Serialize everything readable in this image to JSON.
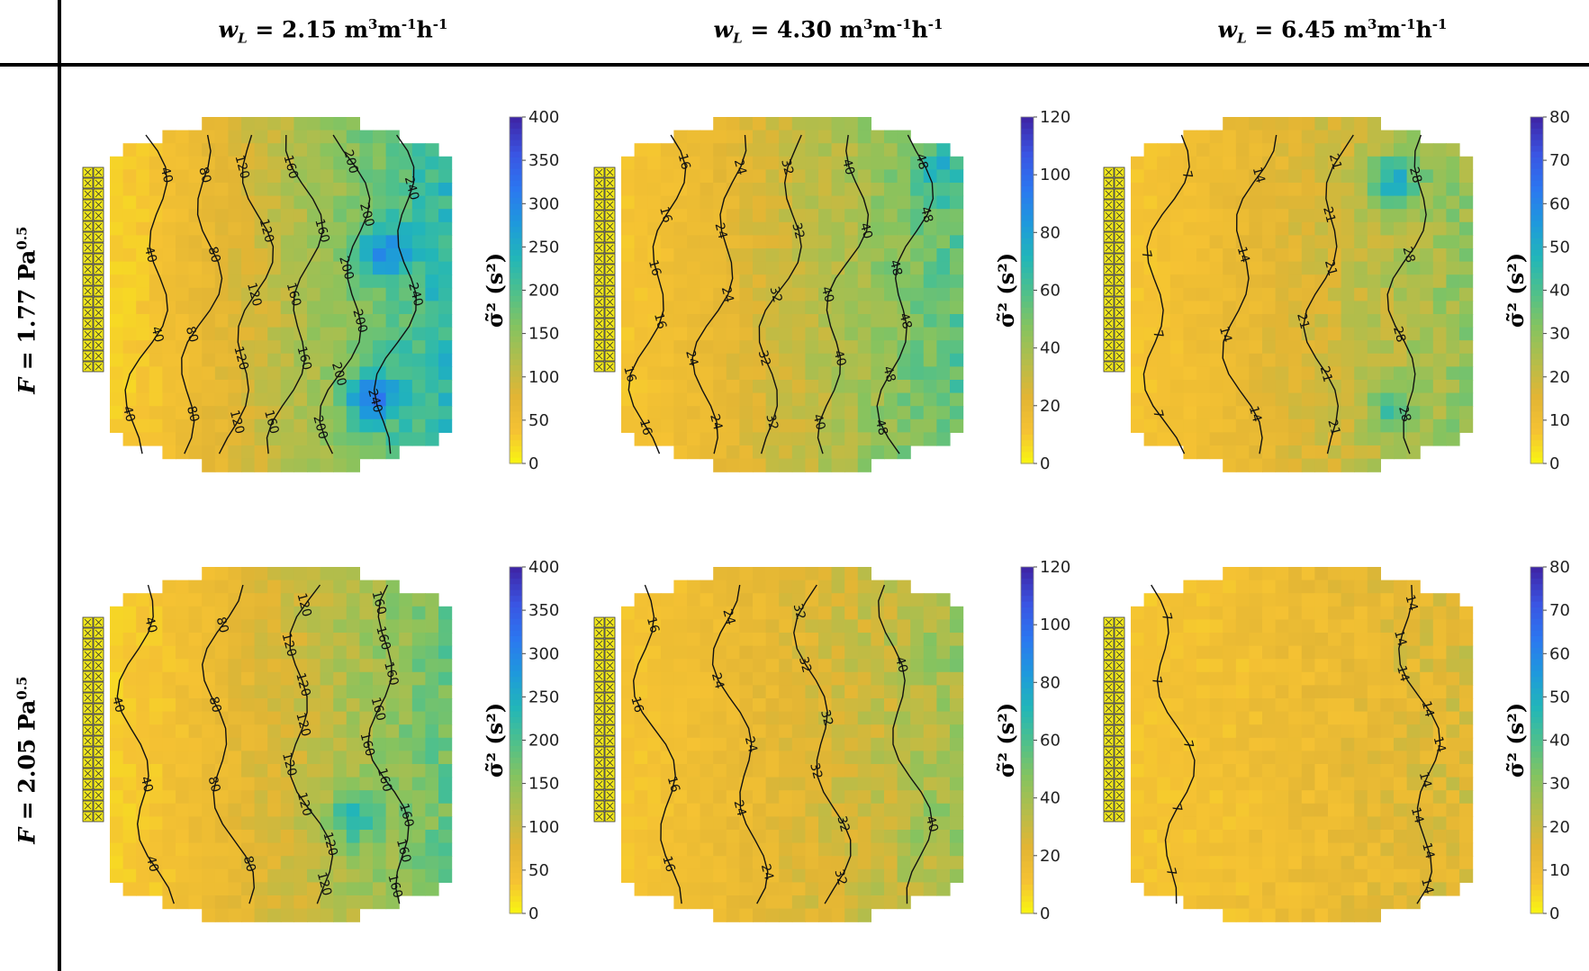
{
  "header": {
    "columns": [
      {
        "symbol": "w",
        "subscript": "L",
        "value": " =  2.15 m",
        "unit_tail": "m",
        "exp1": "3",
        "mid": "m",
        "exp2": "-1",
        "last": "h",
        "exp3": "-1"
      },
      {
        "symbol": "w",
        "subscript": "L",
        "value": " =  4.30 m",
        "unit_tail": "m",
        "exp1": "3",
        "mid": "m",
        "exp2": "-1",
        "last": "h",
        "exp3": "-1"
      },
      {
        "symbol": "w",
        "subscript": "L",
        "value": " =  6.45 m",
        "unit_tail": "m",
        "exp1": "3",
        "mid": "m",
        "exp2": "-1",
        "last": "h",
        "exp3": "-1"
      }
    ],
    "rows": [
      {
        "symbol": "F",
        "value": " = 1.77 Pa",
        "exp": "0.5"
      },
      {
        "symbol": "F",
        "value": " = 2.05 Pa",
        "exp": "0.5"
      }
    ]
  },
  "colorbar_title": "σ̃² (s²)",
  "chart_data": [
    {
      "type": "heatmap",
      "row": 0,
      "col": 0,
      "colorbar_ticks": [
        "0",
        "50",
        "100",
        "150",
        "200",
        "250",
        "300",
        "350",
        "400"
      ],
      "clim": [
        0,
        400
      ],
      "field": {
        "gradient": "left-to-right",
        "left_value": 30,
        "right_value": 230,
        "hotspots": [
          {
            "u": 0.78,
            "v": 0.8,
            "value": 330
          },
          {
            "u": 0.82,
            "v": 0.38,
            "value": 300
          }
        ]
      },
      "contour_labels": [
        "40",
        "40",
        "40",
        "40",
        "80",
        "80",
        "80",
        "80",
        "120",
        "120",
        "120",
        "120",
        "120",
        "160",
        "160",
        "160",
        "160",
        "160",
        "200",
        "200",
        "200",
        "200",
        "200",
        "200",
        "240",
        "240",
        "240"
      ]
    },
    {
      "type": "heatmap",
      "row": 0,
      "col": 1,
      "colorbar_ticks": [
        "0",
        "20",
        "40",
        "60",
        "80",
        "100",
        "120"
      ],
      "clim": [
        0,
        120
      ],
      "field": {
        "gradient": "left-to-right",
        "left_value": 12,
        "right_value": 58,
        "hotspots": [
          {
            "u": 0.95,
            "v": 0.15,
            "value": 75
          }
        ]
      },
      "contour_labels": [
        "16",
        "16",
        "16",
        "16",
        "16",
        "16",
        "24",
        "24",
        "24",
        "24",
        "24",
        "32",
        "32",
        "32",
        "32",
        "32",
        "40",
        "40",
        "40",
        "40",
        "40",
        "48",
        "48",
        "48",
        "48",
        "48",
        "48"
      ]
    },
    {
      "type": "heatmap",
      "row": 0,
      "col": 2,
      "colorbar_ticks": [
        "0",
        "10",
        "20",
        "30",
        "40",
        "50",
        "60",
        "70",
        "80"
      ],
      "clim": [
        0,
        80
      ],
      "field": {
        "gradient": "left-to-right",
        "left_value": 8,
        "right_value": 30,
        "hotspots": [
          {
            "u": 0.78,
            "v": 0.17,
            "value": 50
          },
          {
            "u": 0.78,
            "v": 0.85,
            "value": 42
          }
        ]
      },
      "contour_labels": [
        "7",
        "7",
        "7",
        "7",
        "14",
        "14",
        "14",
        "14",
        "21",
        "21",
        "21",
        "21",
        "21",
        "21",
        "28",
        "28",
        "28",
        "28"
      ]
    },
    {
      "type": "heatmap",
      "row": 1,
      "col": 0,
      "colorbar_ticks": [
        "0",
        "50",
        "100",
        "150",
        "200",
        "250",
        "300",
        "350",
        "400"
      ],
      "clim": [
        0,
        400
      ],
      "field": {
        "gradient": "left-to-right",
        "left_value": 30,
        "right_value": 180,
        "hotspots": [
          {
            "u": 0.72,
            "v": 0.72,
            "value": 230
          }
        ]
      },
      "contour_labels": [
        "40",
        "40",
        "40",
        "40",
        "80",
        "80",
        "80",
        "80",
        "120",
        "120",
        "120",
        "120",
        "120",
        "120",
        "120",
        "120",
        "160",
        "160",
        "160",
        "160",
        "160",
        "160",
        "160",
        "160",
        "160"
      ]
    },
    {
      "type": "heatmap",
      "row": 1,
      "col": 1,
      "colorbar_ticks": [
        "0",
        "20",
        "40",
        "60",
        "80",
        "100",
        "120"
      ],
      "clim": [
        0,
        120
      ],
      "field": {
        "gradient": "left-to-right",
        "left_value": 12,
        "right_value": 40,
        "hotspots": [
          {
            "u": 0.94,
            "v": 0.25,
            "value": 46
          },
          {
            "u": 0.94,
            "v": 0.73,
            "value": 46
          }
        ]
      },
      "contour_labels": [
        "16",
        "16",
        "16",
        "16",
        "24",
        "24",
        "24",
        "24",
        "24",
        "32",
        "32",
        "32",
        "32",
        "32",
        "32",
        "40",
        "40"
      ]
    },
    {
      "type": "heatmap",
      "row": 1,
      "col": 2,
      "colorbar_ticks": [
        "0",
        "10",
        "20",
        "30",
        "40",
        "50",
        "60",
        "70",
        "80"
      ],
      "clim": [
        0,
        80
      ],
      "field": {
        "gradient": "left-to-right",
        "left_value": 8,
        "right_value": 17,
        "hotspots": []
      },
      "contour_labels": [
        "7",
        "7",
        "7",
        "7",
        "7",
        "14",
        "14",
        "14",
        "14",
        "14",
        "14",
        "14",
        "14",
        "14"
      ]
    }
  ],
  "colors": {
    "colormap": [
      "#f9fb0e",
      "#f5c233",
      "#e2b534",
      "#b5bd4a",
      "#86c35f",
      "#4fc08b",
      "#22b6b8",
      "#1e99dc",
      "#2b77f0",
      "#3a55e3",
      "#3e26a8"
    ],
    "hatch": "#f2e81a"
  }
}
